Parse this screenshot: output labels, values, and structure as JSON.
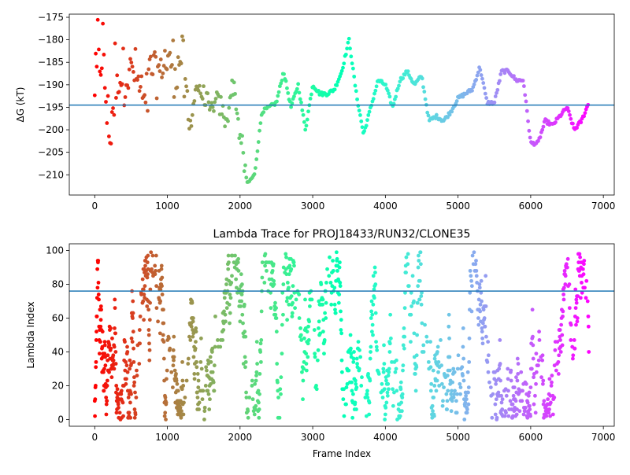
{
  "chart_data": [
    {
      "type": "scatter",
      "title": "",
      "xlabel": "",
      "ylabel": "ΔG (kT)",
      "xlim": [
        -350,
        7150
      ],
      "ylim": [
        -214.5,
        -174.3
      ],
      "xticks": [
        0,
        1000,
        2000,
        3000,
        4000,
        5000,
        6000,
        7000
      ],
      "yticks": [
        -175,
        -180,
        -185,
        -190,
        -195,
        -200,
        -205,
        -210
      ],
      "hline": -194.5,
      "hline_color": "#1f77b4",
      "colormap": "rainbow (reversed: frame 0 red → last frame purple)",
      "series_trace": {
        "x": [
          0,
          100,
          200,
          300,
          400,
          500,
          600,
          700,
          800,
          900,
          1000,
          1100,
          1200,
          1300,
          1400,
          1500,
          1600,
          1700,
          1800,
          1900,
          2000,
          2100,
          2200,
          2300,
          2400,
          2500,
          2600,
          2700,
          2800,
          2900,
          3000,
          3100,
          3200,
          3300,
          3400,
          3500,
          3600,
          3700,
          3800,
          3900,
          4000,
          4100,
          4200,
          4300,
          4400,
          4500,
          4600,
          4700,
          4800,
          4900,
          5000,
          5100,
          5200,
          5300,
          5400,
          5500,
          5600,
          5700,
          5800,
          5900,
          6000,
          6100,
          6200,
          6300,
          6400,
          6500,
          6600,
          6700,
          6800
        ],
        "y": [
          -190,
          -183,
          -200,
          -190,
          -188,
          -186,
          -190,
          -195,
          -185,
          -187,
          -184,
          -186,
          -184,
          -200,
          -190,
          -193,
          -196,
          -193,
          -199,
          -189,
          -201,
          -212,
          -210,
          -196,
          -195,
          -194,
          -187,
          -195,
          -190,
          -200,
          -190,
          -192,
          -192,
          -191,
          -187,
          -180,
          -192,
          -201,
          -195,
          -189,
          -190,
          -195,
          -189,
          -187,
          -190,
          -188,
          -198,
          -197,
          -198,
          -196,
          -193,
          -192,
          -191,
          -186,
          -194,
          -194,
          -187,
          -187,
          -189,
          -189,
          -203,
          -203,
          -198,
          -199,
          -197,
          -195,
          -200,
          -198,
          -194
        ]
      }
    },
    {
      "type": "scatter",
      "title": "Lambda Trace for PROJ18433/RUN32/CLONE35",
      "xlabel": "Frame Index",
      "ylabel": "Lambda Index",
      "xlim": [
        -350,
        7150
      ],
      "ylim": [
        -4,
        104
      ],
      "xticks": [
        0,
        1000,
        2000,
        3000,
        4000,
        5000,
        6000,
        7000
      ],
      "yticks": [
        0,
        20,
        40,
        60,
        80,
        100
      ],
      "hline": 76,
      "hline_color": "#1f77b4",
      "lambda_range": [
        0,
        99
      ],
      "colormap": "rainbow (reversed: frame 0 red → last frame purple)"
    }
  ]
}
